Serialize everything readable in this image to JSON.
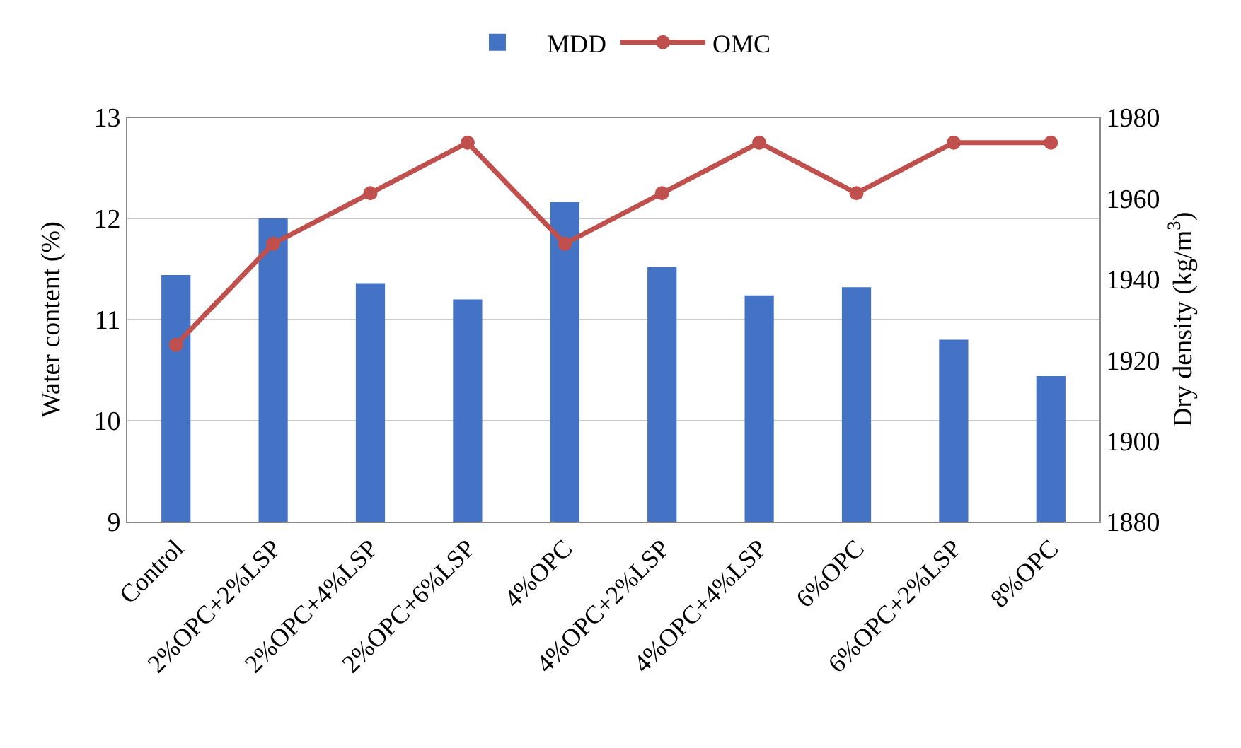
{
  "chart_data": {
    "type": "bar",
    "categories": [
      "Control",
      "2%OPC+2%LSP",
      "2%OPC+4%LSP",
      "2%OPC+6%LSP",
      "4%OPC",
      "4%OPC+2%LSP",
      "4%OPC+4%LSP",
      "6%OPC",
      "6%OPC+2%LSP",
      "8%OPC"
    ],
    "series": [
      {
        "name": "MDD",
        "color": "#4472c4",
        "axis": "y2",
        "values": [
          1941,
          1955,
          1939,
          1935,
          1959,
          1943,
          1936,
          1938,
          1925,
          1916
        ]
      },
      {
        "name": "OMC",
        "color": "#c0504d",
        "type": "line",
        "marker": "circle",
        "values": [
          10.75,
          11.75,
          12.25,
          12.75,
          11.75,
          12.25,
          12.75,
          12.25,
          12.75,
          12.75
        ]
      }
    ],
    "ylabel": "Water content (%)",
    "y2label": "Dry density (kg/m$^{3}$)",
    "ylim": [
      9,
      13
    ],
    "yticks": [
      9,
      10,
      11,
      12,
      13
    ],
    "y2lim": [
      1880,
      1980
    ],
    "y2ticks": [
      1880,
      1900,
      1920,
      1940,
      1960,
      1980
    ],
    "grid": "y",
    "legend": "top"
  }
}
